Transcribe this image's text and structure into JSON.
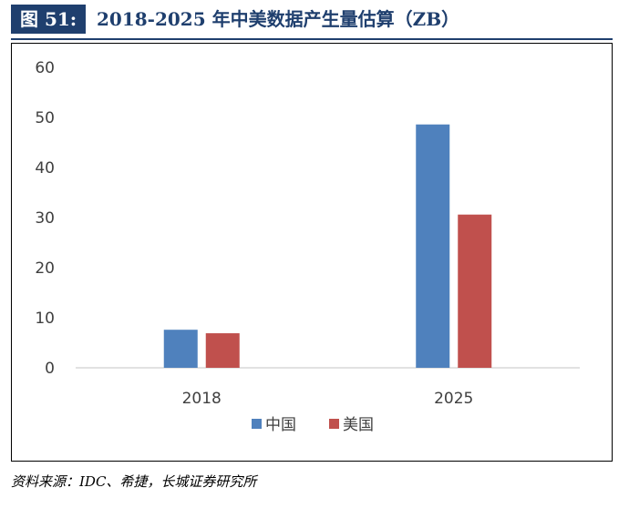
{
  "header": {
    "figure_label": "图 51:",
    "title": "2018-2025 年中美数据产生量估算（ZB）"
  },
  "source": "资料来源：IDC、希捷，长城证券研究所",
  "colors": {
    "header_bg": "#1f3f6e",
    "china": "#4f81bd",
    "usa": "#c0504d"
  },
  "chart_data": {
    "type": "bar",
    "title": "2018-2025 年中美数据产生量估算（ZB）",
    "categories": [
      "2018",
      "2025"
    ],
    "series": [
      {
        "name": "中国",
        "values": [
          7.6,
          48.6
        ]
      },
      {
        "name": "美国",
        "values": [
          6.9,
          30.6
        ]
      }
    ],
    "ylim": [
      0,
      60
    ],
    "yticks": [
      0,
      10,
      20,
      30,
      40,
      50,
      60
    ],
    "xlabel": "",
    "ylabel": "",
    "grid": false,
    "legend_position": "bottom"
  }
}
